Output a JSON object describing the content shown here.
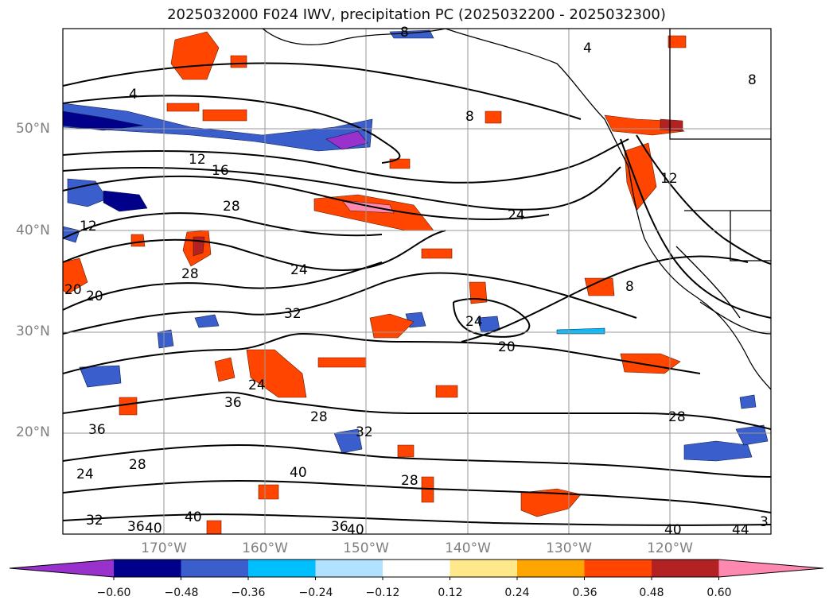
{
  "title": "2025032000 F024 IWV, precipitation PC (2025032200 - 2025032300)",
  "map": {
    "lat_labels": [
      "50°N",
      "40°N",
      "30°N",
      "20°N"
    ],
    "lon_labels": [
      "170°W",
      "160°W",
      "150°W",
      "140°W",
      "130°W",
      "120°W"
    ],
    "contour_labels": [
      "4",
      "4",
      "8",
      "8",
      "8",
      "8",
      "12",
      "16",
      "12",
      "12",
      "28",
      "24",
      "24",
      "28",
      "20",
      "20",
      "24",
      "32",
      "24",
      "20",
      "28",
      "36",
      "28",
      "32",
      "36",
      "28",
      "24",
      "40",
      "28",
      "32",
      "36",
      "40",
      "40",
      "36",
      "40",
      "40",
      "44",
      "3"
    ]
  },
  "colorbar": {
    "ticks": [
      "−0.60",
      "−0.48",
      "−0.36",
      "−0.24",
      "−0.12",
      "0.12",
      "0.24",
      "0.36",
      "0.48",
      "0.60"
    ],
    "colors": [
      "#9932cc",
      "#00008b",
      "#3a5fcd",
      "#00bfff",
      "#b0e2ff",
      "#ffffff",
      "#ffe88a",
      "#ffa500",
      "#ff4500",
      "#b22222",
      "#ff88b0"
    ]
  }
}
